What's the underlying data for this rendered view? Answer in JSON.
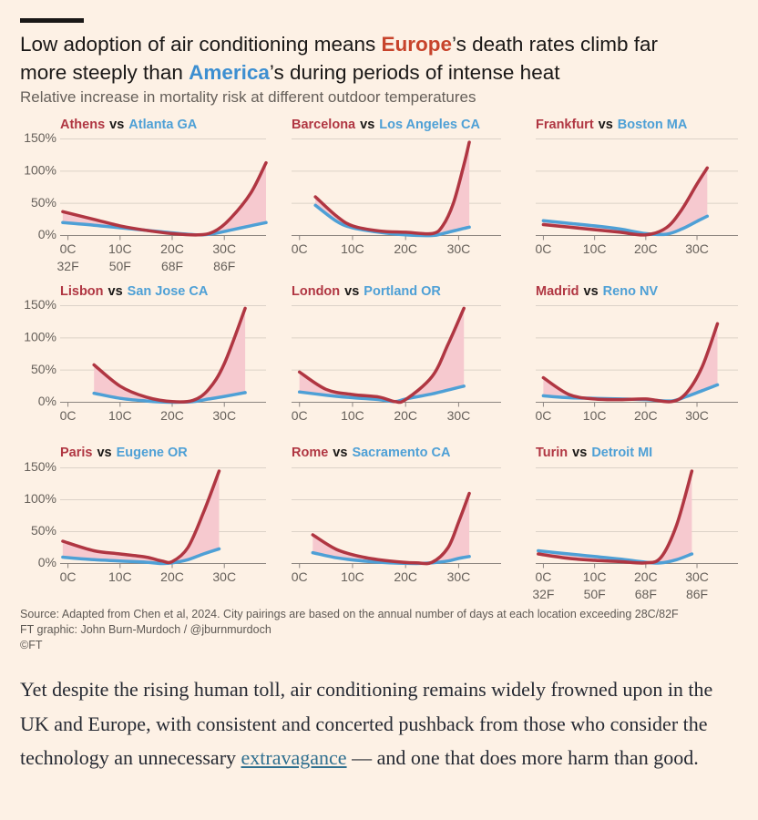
{
  "title": [
    "Low adoption of air conditioning means ",
    "Europe",
    "’s death rates climb far more steeply than ",
    "America",
    "’s during periods of intense heat"
  ],
  "subtitle": "Relative increase in mortality risk at different outdoor temperatures",
  "source": [
    "Source: Adapted from Chen et al, 2024. City pairings are based on the annual number of days at each location exceeding 28C/82F",
    "FT graphic: John Burn-Murdoch / @jburnmurdoch",
    "©FT"
  ],
  "article": [
    "Yet despite the rising human toll, air conditioning remains widely frowned upon in the UK and Europe, with consistent and concerted pushback from those who consider the technology an unnecessary ",
    "extravagance",
    " — and one that does more harm than good."
  ],
  "chart_data": [
    {
      "type": "line",
      "separator": "vs",
      "fill_color": "#f6c9cf",
      "x": [
        -1,
        5,
        10,
        15,
        20,
        25,
        28,
        31,
        35,
        38
      ],
      "series": [
        {
          "name": "Athens",
          "color": "#b03642",
          "values": [
            37,
            25,
            15,
            8,
            3,
            1,
            6,
            25,
            65,
            113
          ]
        },
        {
          "name": "Atlanta GA",
          "color": "#4ea0d6",
          "values": [
            20,
            16,
            12,
            8,
            4,
            1,
            3,
            8,
            15,
            20
          ]
        }
      ],
      "xlim": [
        -1.5,
        38
      ],
      "xticks": [
        {
          "value": 0,
          "label": "0C"
        },
        {
          "value": 10,
          "label": "10C"
        },
        {
          "value": 20,
          "label": "20C"
        },
        {
          "value": 30,
          "label": "30C"
        }
      ],
      "xticks_secondary": [
        {
          "value": 0,
          "label": "32F"
        },
        {
          "value": 10,
          "label": "50F"
        },
        {
          "value": 20,
          "label": "68F"
        },
        {
          "value": 30,
          "label": "86F"
        }
      ],
      "ylim": [
        -5,
        155
      ],
      "yticks": [
        {
          "value": 0,
          "label": "0%"
        },
        {
          "value": 50,
          "label": "50%"
        },
        {
          "value": 100,
          "label": "100%"
        },
        {
          "value": 150,
          "label": "150%"
        }
      ]
    },
    {
      "type": "line",
      "separator": "vs",
      "fill_color": "#f6c9cf",
      "x": [
        3,
        7,
        10,
        15,
        20,
        25,
        27,
        29,
        31,
        32
      ],
      "series": [
        {
          "name": "Barcelona",
          "color": "#b03642",
          "values": [
            60,
            30,
            15,
            7,
            5,
            3,
            15,
            50,
            110,
            145
          ]
        },
        {
          "name": "Los Angeles CA",
          "color": "#4ea0d6",
          "values": [
            47,
            22,
            12,
            5,
            1,
            0,
            3,
            7,
            11,
            13
          ]
        }
      ],
      "xlim": [
        -1.5,
        38
      ],
      "xticks": [
        {
          "value": 0,
          "label": "0C"
        },
        {
          "value": 10,
          "label": "10C"
        },
        {
          "value": 20,
          "label": "20C"
        },
        {
          "value": 30,
          "label": "30C"
        }
      ],
      "ylim": [
        -5,
        155
      ],
      "yticks": [
        0,
        50,
        100,
        150
      ]
    },
    {
      "type": "line",
      "separator": "vs",
      "fill_color": "#f6c9cf",
      "x": [
        0,
        5,
        10,
        15,
        20,
        24,
        27,
        30,
        32
      ],
      "series": [
        {
          "name": "Frankfurt",
          "color": "#b03642",
          "values": [
            17,
            13,
            9,
            5,
            1,
            12,
            40,
            80,
            105
          ]
        },
        {
          "name": "Boston MA",
          "color": "#4ea0d6",
          "values": [
            23,
            19,
            15,
            10,
            3,
            2,
            10,
            22,
            30
          ]
        }
      ],
      "xlim": [
        -1.5,
        38
      ],
      "xticks": [
        {
          "value": 0,
          "label": "0C"
        },
        {
          "value": 10,
          "label": "10C"
        },
        {
          "value": 20,
          "label": "20C"
        },
        {
          "value": 30,
          "label": "30C"
        }
      ],
      "ylim": [
        -5,
        155
      ],
      "yticks": [
        0,
        50,
        100,
        150
      ]
    },
    {
      "type": "line",
      "separator": "vs",
      "fill_color": "#f6c9cf",
      "x": [
        5,
        10,
        15,
        20,
        24,
        27,
        30,
        34
      ],
      "series": [
        {
          "name": "Lisbon",
          "color": "#b03642",
          "values": [
            58,
            25,
            8,
            1,
            3,
            20,
            60,
            146
          ]
        },
        {
          "name": "San Jose CA",
          "color": "#4ea0d6",
          "values": [
            14,
            6,
            2,
            0,
            1,
            5,
            9,
            15
          ]
        }
      ],
      "xlim": [
        -1.5,
        38
      ],
      "xticks": [
        {
          "value": 0,
          "label": "0C"
        },
        {
          "value": 10,
          "label": "10C"
        },
        {
          "value": 20,
          "label": "20C"
        },
        {
          "value": 30,
          "label": "30C"
        }
      ],
      "ylim": [
        -5,
        155
      ],
      "yticks": [
        {
          "value": 0,
          "label": "0%"
        },
        {
          "value": 50,
          "label": "50%"
        },
        {
          "value": 100,
          "label": "100%"
        },
        {
          "value": 150,
          "label": "150%"
        }
      ]
    },
    {
      "type": "line",
      "separator": "vs",
      "fill_color": "#f6c9cf",
      "x": [
        0,
        5,
        10,
        15,
        18,
        20,
        25,
        28,
        31
      ],
      "series": [
        {
          "name": "London",
          "color": "#b03642",
          "values": [
            47,
            20,
            12,
            8,
            1,
            4,
            40,
            90,
            146
          ]
        },
        {
          "name": "Portland OR",
          "color": "#4ea0d6",
          "values": [
            16,
            11,
            7,
            4,
            1,
            5,
            13,
            19,
            25
          ]
        }
      ],
      "xlim": [
        -1.5,
        38
      ],
      "xticks": [
        {
          "value": 0,
          "label": "0C"
        },
        {
          "value": 10,
          "label": "10C"
        },
        {
          "value": 20,
          "label": "20C"
        },
        {
          "value": 30,
          "label": "30C"
        }
      ],
      "ylim": [
        -5,
        155
      ],
      "yticks": [
        0,
        50,
        100,
        150
      ]
    },
    {
      "type": "line",
      "separator": "vs",
      "fill_color": "#f6c9cf",
      "x": [
        0,
        5,
        10,
        15,
        20,
        25,
        28,
        31,
        34
      ],
      "series": [
        {
          "name": "Madrid",
          "color": "#b03642",
          "values": [
            38,
            12,
            5,
            4,
            5,
            1,
            15,
            55,
            122
          ]
        },
        {
          "name": "Reno NV",
          "color": "#4ea0d6",
          "values": [
            10,
            7,
            6,
            5,
            4,
            2,
            9,
            18,
            27
          ]
        }
      ],
      "xlim": [
        -1.5,
        38
      ],
      "xticks": [
        {
          "value": 0,
          "label": "0C"
        },
        {
          "value": 10,
          "label": "10C"
        },
        {
          "value": 20,
          "label": "20C"
        },
        {
          "value": 30,
          "label": "30C"
        }
      ],
      "ylim": [
        -5,
        155
      ],
      "yticks": [
        0,
        50,
        100,
        150
      ]
    },
    {
      "type": "line",
      "separator": "vs",
      "fill_color": "#f6c9cf",
      "x": [
        -1,
        5,
        10,
        15,
        18,
        20,
        23,
        26,
        29
      ],
      "series": [
        {
          "name": "Paris",
          "color": "#b03642",
          "values": [
            35,
            20,
            15,
            10,
            4,
            3,
            25,
            80,
            145
          ]
        },
        {
          "name": "Eugene OR",
          "color": "#4ea0d6",
          "values": [
            10,
            6,
            4,
            2,
            0,
            1,
            6,
            15,
            23
          ]
        }
      ],
      "xlim": [
        -1.5,
        38
      ],
      "xticks": [
        {
          "value": 0,
          "label": "0C"
        },
        {
          "value": 10,
          "label": "10C"
        },
        {
          "value": 20,
          "label": "20C"
        },
        {
          "value": 30,
          "label": "30C"
        }
      ],
      "ylim": [
        -5,
        155
      ],
      "yticks": [
        {
          "value": 0,
          "label": "0%"
        },
        {
          "value": 50,
          "label": "50%"
        },
        {
          "value": 100,
          "label": "100%"
        },
        {
          "value": 150,
          "label": "150%"
        }
      ]
    },
    {
      "type": "line",
      "separator": "vs",
      "fill_color": "#f6c9cf",
      "x": [
        2.5,
        7,
        12,
        17,
        22,
        25,
        28,
        30,
        32
      ],
      "series": [
        {
          "name": "Rome",
          "color": "#b03642",
          "values": [
            45,
            22,
            10,
            4,
            1,
            2,
            25,
            65,
            110
          ]
        },
        {
          "name": "Sacramento CA",
          "color": "#4ea0d6",
          "values": [
            17,
            9,
            4,
            1,
            0,
            1,
            4,
            8,
            11
          ]
        }
      ],
      "xlim": [
        -1.5,
        38
      ],
      "xticks": [
        {
          "value": 0,
          "label": "0C"
        },
        {
          "value": 10,
          "label": "10C"
        },
        {
          "value": 20,
          "label": "20C"
        },
        {
          "value": 30,
          "label": "30C"
        }
      ],
      "ylim": [
        -5,
        155
      ],
      "yticks": [
        0,
        50,
        100,
        150
      ]
    },
    {
      "type": "line",
      "separator": "vs",
      "fill_color": "#f6c9cf",
      "x": [
        -1,
        5,
        10,
        15,
        20,
        23,
        26,
        29
      ],
      "series": [
        {
          "name": "Turin",
          "color": "#b03642",
          "values": [
            15,
            8,
            5,
            3,
            1,
            10,
            60,
            145
          ]
        },
        {
          "name": "Detroit MI",
          "color": "#4ea0d6",
          "values": [
            20,
            15,
            11,
            7,
            2,
            1,
            6,
            15
          ]
        }
      ],
      "xlim": [
        -1.5,
        38
      ],
      "xticks": [
        {
          "value": 0,
          "label": "0C"
        },
        {
          "value": 10,
          "label": "10C"
        },
        {
          "value": 20,
          "label": "20C"
        },
        {
          "value": 30,
          "label": "30C"
        }
      ],
      "xticks_secondary": [
        {
          "value": 0,
          "label": "32F"
        },
        {
          "value": 10,
          "label": "50F"
        },
        {
          "value": 20,
          "label": "68F"
        },
        {
          "value": 30,
          "label": "86F"
        }
      ],
      "ylim": [
        -5,
        155
      ],
      "yticks": [
        0,
        50,
        100,
        150
      ]
    }
  ]
}
